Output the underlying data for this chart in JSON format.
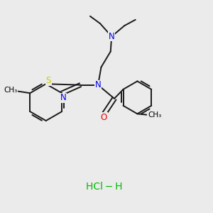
{
  "bg_color": "#ebebeb",
  "bond_color": "#1a1a1a",
  "N_color": "#0000ee",
  "O_color": "#ee0000",
  "S_color": "#cccc00",
  "HCl_color": "#00bb00",
  "lw": 1.4,
  "font_size": 8.5,
  "xlim": [
    0,
    10
  ],
  "ylim": [
    0,
    10
  ]
}
